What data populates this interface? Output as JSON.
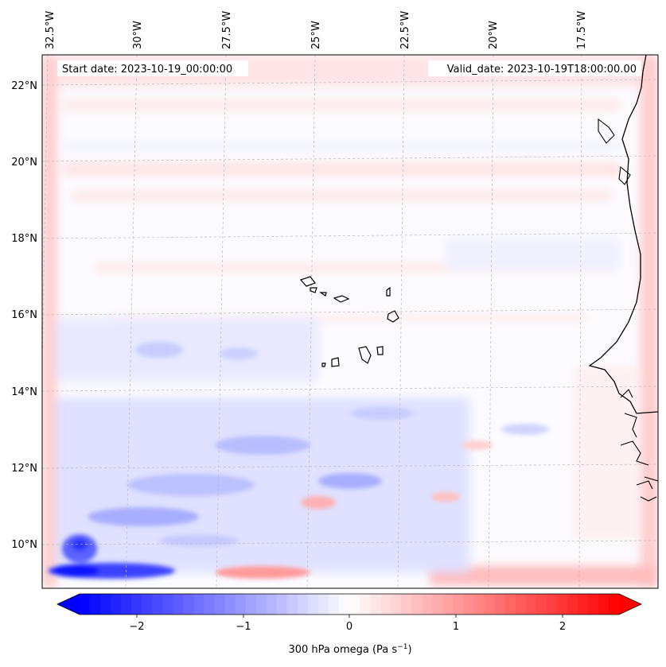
{
  "map": {
    "start_date_label": "Start date: 2023-10-19_00:00:00",
    "valid_date_label": "Valid_date: 2023-10-19T18:00:00.00",
    "lon_labels": [
      "32.5°W",
      "30°W",
      "27.5°W",
      "25°W",
      "22.5°W",
      "20°W",
      "17.5°W"
    ],
    "lat_labels": [
      "22°N",
      "20°N",
      "18°N",
      "16°N",
      "14°N",
      "12°N",
      "10°N"
    ],
    "coastline_color": "#000000",
    "gridline_color": "#bbbbbb"
  },
  "colorbar": {
    "ticks": [
      "−2",
      "−1",
      "0",
      "1",
      "2"
    ],
    "label_prefix": "300 hPa omega (Pa s",
    "label_exp": "−1",
    "label_suffix": ")",
    "min": -2.6,
    "max": 2.6,
    "colors": {
      "neg": "#0000ff",
      "mid": "#ffffff",
      "pos": "#ff0000"
    }
  }
}
